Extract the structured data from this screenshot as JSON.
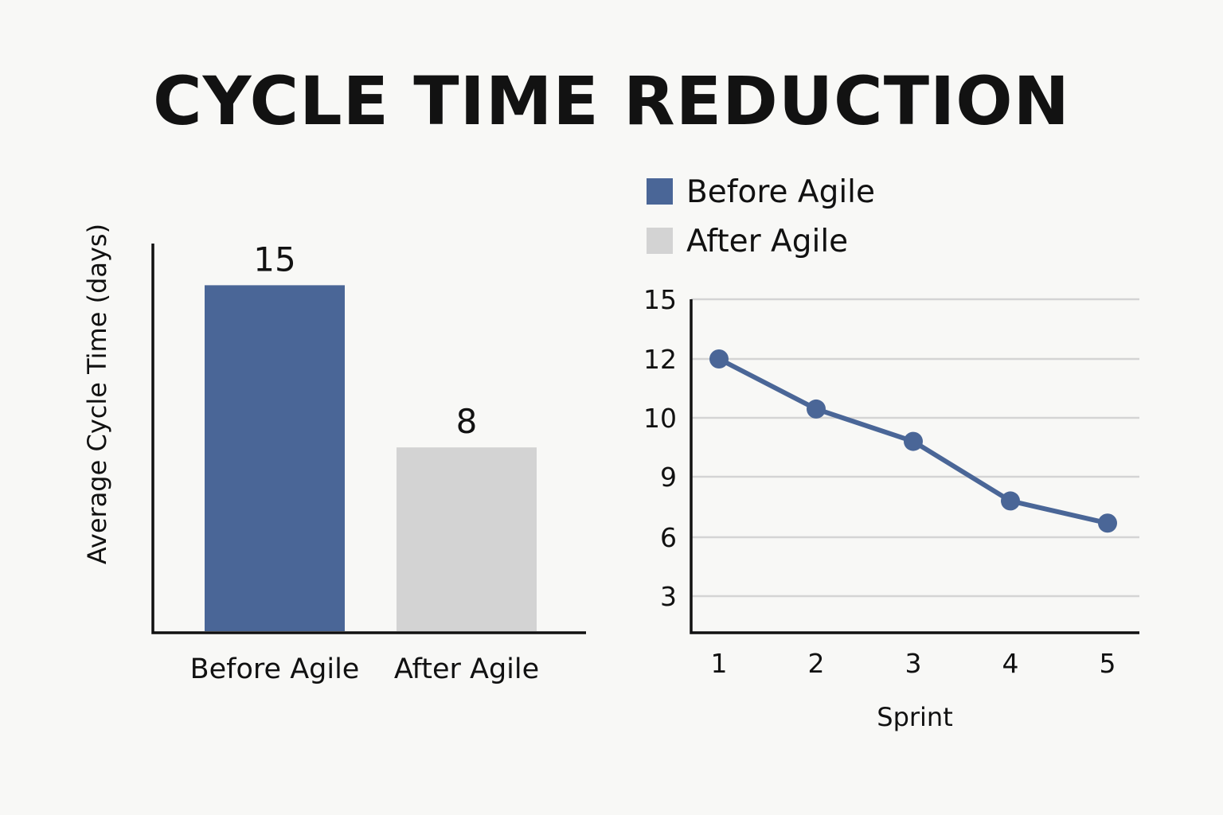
{
  "title": "CYCLE TIME REDUCTION",
  "colors": {
    "before": "#4a6697",
    "after": "#d3d3d3",
    "line": "#4a6697"
  },
  "legend": [
    {
      "label": "Before Agile",
      "color": "#4a6697"
    },
    {
      "label": "After Agile",
      "color": "#d3d3d3"
    }
  ],
  "chart_data": [
    {
      "type": "bar",
      "categories": [
        "Before Agile",
        "After Agile"
      ],
      "values": [
        15,
        8
      ],
      "data_labels": [
        "15",
        "8"
      ],
      "bar_colors": [
        "#4a6697",
        "#d3d3d3"
      ],
      "ylabel": "Average Cycle Time (days)",
      "xlabel": "",
      "ylim": [
        0,
        16.8
      ],
      "grid": false
    },
    {
      "type": "line",
      "x": [
        1,
        2,
        3,
        4,
        5
      ],
      "x_tick_labels": [
        "1",
        "2",
        "3",
        "4",
        "5"
      ],
      "y_ticks": [
        3,
        6,
        9,
        10,
        12,
        15
      ],
      "y_tick_labels": [
        "3",
        "6",
        "9",
        "10",
        "12",
        "15"
      ],
      "series": [
        {
          "values": [
            12,
            10.3,
            9.6,
            7.8,
            6.7
          ],
          "color": "#4a6697"
        }
      ],
      "xlabel": "Sprint",
      "ylabel": "",
      "grid": true,
      "legend_position": "top-left"
    }
  ]
}
